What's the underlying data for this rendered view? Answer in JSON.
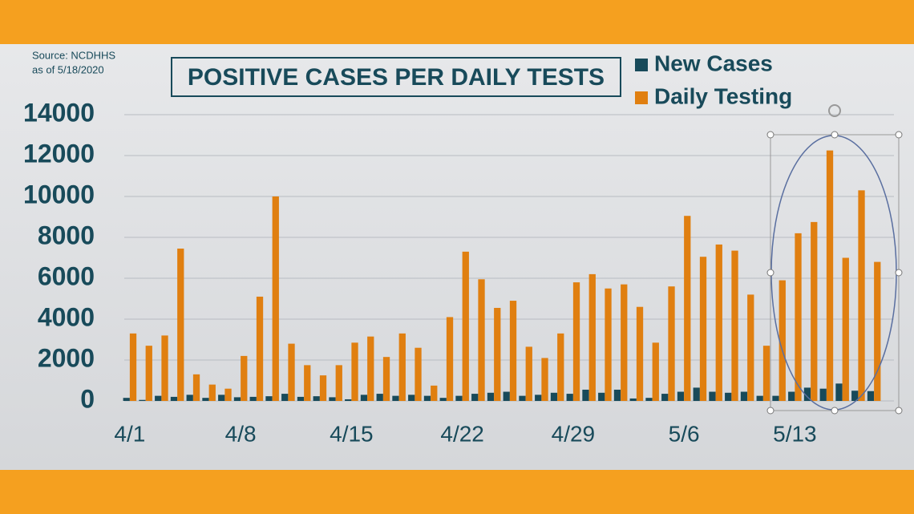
{
  "chart_data": {
    "type": "bar",
    "title": "POSITIVE CASES PER DAILY TESTS",
    "source_lines": [
      "Source: NCDHHS",
      "as of 5/18/2020"
    ],
    "categories": [
      "4/1",
      null,
      null,
      null,
      null,
      null,
      null,
      "4/8",
      null,
      null,
      null,
      null,
      null,
      null,
      "4/15",
      null,
      null,
      null,
      null,
      null,
      null,
      "4/22",
      null,
      null,
      null,
      null,
      null,
      null,
      "4/29",
      null,
      null,
      null,
      null,
      null,
      null,
      "5/6",
      null,
      null,
      null,
      null,
      null,
      null,
      "5/13",
      null,
      null,
      null,
      null,
      null
    ],
    "series": [
      {
        "name": "New Cases",
        "color": "#184a5a",
        "values": [
          150,
          50,
          250,
          200,
          300,
          150,
          300,
          180,
          200,
          230,
          350,
          200,
          230,
          180,
          80,
          300,
          350,
          250,
          300,
          250,
          150,
          250,
          350,
          400,
          450,
          250,
          300,
          400,
          350,
          550,
          400,
          550,
          120,
          150,
          350,
          450,
          650,
          450,
          400,
          450,
          250,
          250,
          450,
          650,
          600,
          850,
          500,
          480
        ]
      },
      {
        "name": "Daily Testing",
        "color": "#e07f10",
        "values": [
          3300,
          2700,
          3200,
          7450,
          1300,
          800,
          600,
          2200,
          5100,
          10000,
          2800,
          1750,
          1250,
          1750,
          2850,
          3150,
          2150,
          3300,
          2600,
          750,
          4100,
          7300,
          5950,
          4550,
          4900,
          2650,
          2100,
          3300,
          5800,
          6200,
          5500,
          5700,
          4600,
          2850,
          5600,
          9050,
          7050,
          7650,
          7350,
          5200,
          2700,
          5900,
          8200,
          8750,
          12250,
          7000,
          10300,
          6800
        ]
      }
    ],
    "ylim": [
      0,
      14000
    ],
    "yticks": [
      0,
      2000,
      4000,
      6000,
      8000,
      10000,
      12000,
      14000
    ],
    "grid": true
  }
}
